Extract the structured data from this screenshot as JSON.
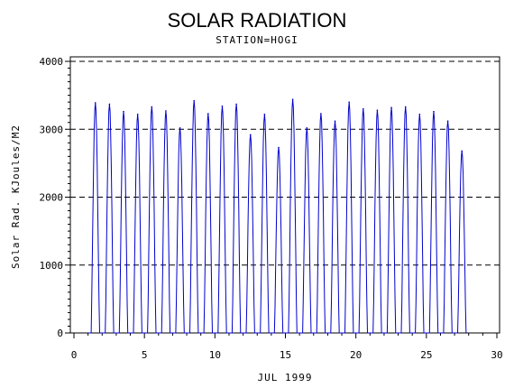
{
  "colors": {
    "series": "#0000cc",
    "axis": "#000000",
    "grid": "#000000"
  },
  "chart_data": {
    "type": "line",
    "title": "SOLAR RADIATION",
    "subtitle": "STATION=HOGI",
    "xlabel": "JUL 1999",
    "ylabel": "Solar Rad. KJoules/M2",
    "xlim": [
      0,
      30
    ],
    "ylim": [
      0,
      4000
    ],
    "x_ticks": [
      "0",
      "5",
      "10",
      "15",
      "20",
      "25",
      "30"
    ],
    "y_ticks": [
      "0",
      "1000",
      "2000",
      "3000",
      "4000"
    ],
    "grid": "horizontal dashed",
    "series": [
      {
        "daily_peaks": [
          {
            "day": 1,
            "peak": 3390
          },
          {
            "day": 2,
            "peak": 3370
          },
          {
            "day": 3,
            "peak": 3260
          },
          {
            "day": 4,
            "peak": 3220
          },
          {
            "day": 5,
            "peak": 3330
          },
          {
            "day": 6,
            "peak": 3270
          },
          {
            "day": 7,
            "peak": 3020
          },
          {
            "day": 8,
            "peak": 3420
          },
          {
            "day": 9,
            "peak": 3230
          },
          {
            "day": 10,
            "peak": 3340
          },
          {
            "day": 11,
            "peak": 3370
          },
          {
            "day": 12,
            "peak": 2920
          },
          {
            "day": 13,
            "peak": 3220
          },
          {
            "day": 14,
            "peak": 2730
          },
          {
            "day": 15,
            "peak": 3440
          },
          {
            "day": 16,
            "peak": 3020
          },
          {
            "day": 17,
            "peak": 3230
          },
          {
            "day": 18,
            "peak": 3120
          },
          {
            "day": 19,
            "peak": 3400
          },
          {
            "day": 20,
            "peak": 3300
          },
          {
            "day": 21,
            "peak": 3280
          },
          {
            "day": 22,
            "peak": 3320
          },
          {
            "day": 23,
            "peak": 3330
          },
          {
            "day": 24,
            "peak": 3220
          },
          {
            "day": 25,
            "peak": 3260
          },
          {
            "day": 26,
            "peak": 3120
          },
          {
            "day": 27,
            "peak": 2680
          }
        ]
      }
    ]
  }
}
